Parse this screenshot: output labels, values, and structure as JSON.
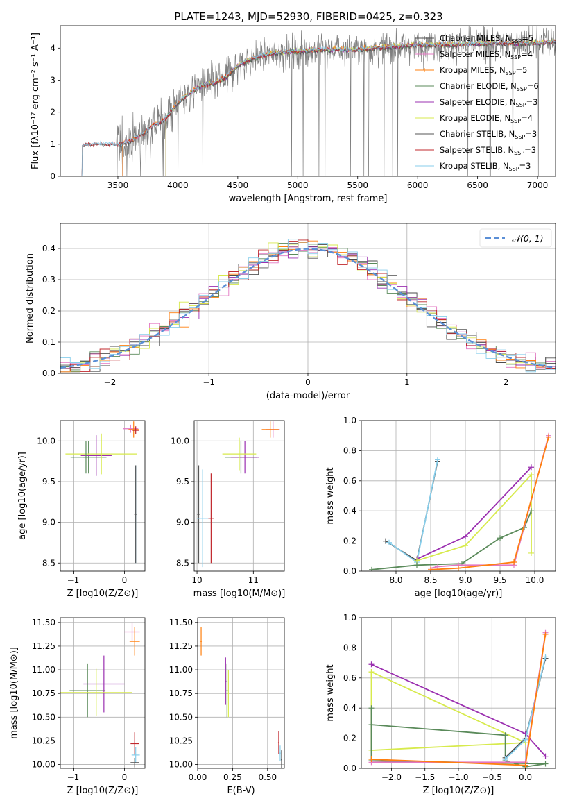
{
  "figure_title": "PLATE=1243, MJD=52930, FIBERID=0425, z=0.323",
  "colors": {
    "Chabrier MILES": "#4b4b4b",
    "Salpeter MILES": "#e377c2",
    "Kroupa MILES": "#ff7f0e",
    "Chabrier ELODIE": "#5a8a5a",
    "Salpeter ELODIE": "#9b30b0",
    "Kroupa ELODIE": "#d7ea4c",
    "Chabrier STELIB": "#555555",
    "Salpeter STELIB": "#c0282d",
    "Kroupa STELIB": "#87ceeb",
    "spectrum": "#808080",
    "normal": "#5b8fd6"
  },
  "chart_data": [
    {
      "id": "spectrum",
      "type": "line",
      "title": "PLATE=1243, MJD=52930, FIBERID=0425, z=0.323",
      "xlabel": "wavelength [Angstrom, rest frame]",
      "ylabel": "Flux [fλ10⁻¹⁷ erg cm⁻² s⁻¹ A⁻¹]",
      "xlim": [
        3020,
        7150
      ],
      "ylim": [
        0,
        4.7
      ],
      "xticks": [
        "3500",
        "4000",
        "4500",
        "5000",
        "5500",
        "6000",
        "6500",
        "7000"
      ],
      "yticks": [
        "0",
        "1",
        "2",
        "3",
        "4"
      ],
      "legend_position": "top-right",
      "legend": [
        "Chabrier MILES, N_SSP=5",
        "Salpeter MILES, N_SSP=4",
        "Kroupa MILES, N_SSP=5",
        "Chabrier ELODIE, N_SSP=6",
        "Salpeter ELODIE, N_SSP=3",
        "Kroupa ELODIE, N_SSP=4",
        "Chabrier STELIB, N_SSP=3",
        "Salpeter STELIB, N_SSP=3",
        "Kroupa STELIB, N_SSP=3"
      ],
      "continuum": {
        "x": [
          3200,
          3250,
          3500,
          3600,
          3700,
          3800,
          3900,
          4000,
          4100,
          4200,
          4300,
          4400,
          4500,
          4600,
          4800,
          5000,
          5200,
          5500,
          5800,
          6000,
          6300,
          6600,
          7000,
          7150
        ],
        "y": [
          0.95,
          1.0,
          1.0,
          1.1,
          1.3,
          1.6,
          1.8,
          2.3,
          2.6,
          2.85,
          2.9,
          3.1,
          3.45,
          3.65,
          3.85,
          3.9,
          3.95,
          3.95,
          4.05,
          4.1,
          4.1,
          4.15,
          4.15,
          4.2
        ]
      }
    },
    {
      "id": "residuals",
      "type": "line",
      "xlabel": "(data-model)/error",
      "ylabel": "Normed distribution",
      "xlim": [
        -2.5,
        2.5
      ],
      "ylim": [
        0,
        0.48
      ],
      "xticks": [
        "−2",
        "−1",
        "0",
        "1",
        "2"
      ],
      "yticks": [
        "0.0",
        "0.1",
        "0.2",
        "0.3",
        "0.4"
      ],
      "grid": true,
      "legend_position": "top-right",
      "legend": [
        "𝒩(0, 1)"
      ],
      "curve": "normal pdf, mean 0, sigma 1"
    },
    {
      "id": "age-Z",
      "type": "scatter",
      "xlabel": "Z [log10(Z/Z⊙)]",
      "ylabel": "age  [log10(age/yr)]",
      "xlim": [
        -1.25,
        0.4
      ],
      "ylim": [
        8.4,
        10.25
      ],
      "xticks": [
        "−1",
        "0"
      ],
      "yticks": [
        "8.5",
        "9.0",
        "9.5",
        "10.0"
      ],
      "grid": true,
      "points": [
        {
          "lib": "Chabrier ELODIE",
          "x": -0.7,
          "y": 9.8,
          "xerr": 0.35,
          "yerr": 0.2
        },
        {
          "lib": "Salpeter ELODIE",
          "x": -0.55,
          "y": 9.82,
          "xerr": 0.3,
          "yerr": 0.25
        },
        {
          "lib": "Kroupa ELODIE",
          "x": -0.45,
          "y": 9.84,
          "xerr": 0.7,
          "yerr": 0.25
        },
        {
          "lib": "Chabrier ELODIE",
          "x": -0.75,
          "y": 9.8,
          "xerr": 0.05,
          "yerr": 0.2
        },
        {
          "lib": "Salpeter MILES",
          "x": 0.12,
          "y": 10.15,
          "xerr": 0.15,
          "yerr": 0.05
        },
        {
          "lib": "Kroupa MILES",
          "x": 0.18,
          "y": 10.14,
          "xerr": 0.1,
          "yerr": 0.1
        },
        {
          "lib": "Salpeter STELIB",
          "x": 0.22,
          "y": 10.13,
          "xerr": 0.06,
          "yerr": 0.05
        },
        {
          "lib": "Kroupa STELIB",
          "x": 0.22,
          "y": 9.1,
          "xerr": 0.02,
          "yerr": 0.6
        },
        {
          "lib": "Chabrier STELIB",
          "x": 0.22,
          "y": 9.1,
          "xerr": 0.03,
          "yerr": 0.6
        }
      ]
    },
    {
      "id": "age-mass",
      "type": "scatter",
      "xlabel": "mass [log10(M/M⊙)]",
      "ylabel": "",
      "xlim": [
        9.95,
        11.55
      ],
      "ylim": [
        8.4,
        10.25
      ],
      "xticks": [
        "10",
        "11"
      ],
      "yticks": [
        "8.5",
        "9.0",
        "9.5",
        "10.0"
      ],
      "grid": true,
      "points": [
        {
          "lib": "Chabrier ELODIE",
          "x": 10.78,
          "y": 9.8,
          "xerr": 0.28,
          "yerr": 0.2
        },
        {
          "lib": "Salpeter ELODIE",
          "x": 10.85,
          "y": 9.8,
          "xerr": 0.25,
          "yerr": 0.2
        },
        {
          "lib": "Kroupa ELODIE",
          "x": 10.75,
          "y": 9.84,
          "xerr": 0.3,
          "yerr": 0.2
        },
        {
          "lib": "Salpeter MILES",
          "x": 11.35,
          "y": 10.14,
          "xerr": 0.12,
          "yerr": 0.1
        },
        {
          "lib": "Kroupa MILES",
          "x": 11.3,
          "y": 10.14,
          "xerr": 0.15,
          "yerr": 0.1
        },
        {
          "lib": "Salpeter STELIB",
          "x": 10.25,
          "y": 9.05,
          "xerr": 0.05,
          "yerr": 0.55
        },
        {
          "lib": "Chabrier STELIB",
          "x": 10.03,
          "y": 9.1,
          "xerr": 0.03,
          "yerr": 0.6
        },
        {
          "lib": "Kroupa STELIB",
          "x": 10.1,
          "y": 9.05,
          "xerr": 0.1,
          "yerr": 0.6
        }
      ]
    },
    {
      "id": "weight-age",
      "type": "line",
      "xlabel": "age  [log10(age/yr)]",
      "ylabel": "mass weight",
      "xlim": [
        7.5,
        10.3
      ],
      "ylim": [
        0,
        1.0
      ],
      "xticks": [
        "8.0",
        "8.5",
        "9.0",
        "9.5",
        "10.0"
      ],
      "yticks": [
        "0.0",
        "0.2",
        "0.4",
        "0.6",
        "0.8",
        "1.0"
      ],
      "grid": true,
      "series": [
        {
          "lib": "Chabrier MILES",
          "x": [
            7.85,
            8.3,
            8.6
          ],
          "y": [
            0.2,
            0.07,
            0.73
          ]
        },
        {
          "lib": "Kroupa STELIB",
          "x": [
            7.9,
            8.3,
            8.6
          ],
          "y": [
            0.19,
            0.06,
            0.74
          ]
        },
        {
          "lib": "Salpeter ELODIE",
          "x": [
            8.3,
            9.0,
            9.95
          ],
          "y": [
            0.08,
            0.23,
            0.69
          ]
        },
        {
          "lib": "Kroupa ELODIE",
          "x": [
            8.3,
            9.0,
            9.95,
            9.95
          ],
          "y": [
            0.07,
            0.17,
            0.64,
            0.12
          ]
        },
        {
          "lib": "Chabrier ELODIE",
          "x": [
            7.65,
            8.3,
            8.95,
            9.5,
            9.85,
            9.95
          ],
          "y": [
            0.01,
            0.04,
            0.05,
            0.22,
            0.29,
            0.4
          ]
        },
        {
          "lib": "Salpeter MILES",
          "x": [
            8.5,
            8.6,
            8.9,
            9.7,
            10.2
          ],
          "y": [
            0.02,
            0.03,
            0.04,
            0.04,
            0.9
          ]
        },
        {
          "lib": "Kroupa MILES",
          "x": [
            8.5,
            8.9,
            9.7,
            10.2
          ],
          "y": [
            0.01,
            0.02,
            0.06,
            0.89
          ]
        }
      ]
    },
    {
      "id": "mass-Z",
      "type": "scatter",
      "xlabel": "Z [log10(Z/Z⊙)]",
      "ylabel": "mass [log10(M/M⊙)]",
      "xlim": [
        -1.25,
        0.4
      ],
      "ylim": [
        9.96,
        11.55
      ],
      "xticks": [
        "−1",
        "0"
      ],
      "yticks": [
        "10.00",
        "10.25",
        "10.50",
        "10.75",
        "11.00",
        "11.25",
        "11.50"
      ],
      "grid": true,
      "points": [
        {
          "lib": "Chabrier ELODIE",
          "x": -0.72,
          "y": 10.78,
          "xerr": 0.35,
          "yerr": 0.28
        },
        {
          "lib": "Salpeter ELODIE",
          "x": -0.4,
          "y": 10.85,
          "xerr": 0.4,
          "yerr": 0.3
        },
        {
          "lib": "Kroupa ELODIE",
          "x": -0.55,
          "y": 10.76,
          "xerr": 0.7,
          "yerr": 0.25
        },
        {
          "lib": "Salpeter MILES",
          "x": 0.15,
          "y": 11.4,
          "xerr": 0.15,
          "yerr": 0.1
        },
        {
          "lib": "Kroupa MILES",
          "x": 0.2,
          "y": 11.3,
          "xerr": 0.1,
          "yerr": 0.15
        },
        {
          "lib": "Salpeter STELIB",
          "x": 0.2,
          "y": 10.22,
          "xerr": 0.08,
          "yerr": 0.12
        },
        {
          "lib": "Kroupa STELIB",
          "x": 0.22,
          "y": 10.1,
          "xerr": 0.08,
          "yerr": 0.08
        },
        {
          "lib": "Chabrier STELIB",
          "x": 0.2,
          "y": 10.02,
          "xerr": 0.08,
          "yerr": 0.05
        }
      ]
    },
    {
      "id": "mass-EBV",
      "type": "scatter",
      "xlabel": "E(B-V)",
      "ylabel": "",
      "xlim": [
        0,
        0.62
      ],
      "ylim": [
        9.96,
        11.55
      ],
      "xticks": [
        "0.00",
        "0.25",
        "0.50"
      ],
      "yticks": [
        "10.00",
        "10.25",
        "10.50",
        "10.75",
        "11.00",
        "11.25",
        "11.50"
      ],
      "grid": true,
      "points": [
        {
          "lib": "Kroupa MILES",
          "x": 0.025,
          "y": 11.3,
          "xerr": 0.005,
          "yerr": 0.15
        },
        {
          "lib": "Salpeter ELODIE",
          "x": 0.2,
          "y": 10.88,
          "xerr": 0.005,
          "yerr": 0.25
        },
        {
          "lib": "Chabrier ELODIE",
          "x": 0.21,
          "y": 10.78,
          "xerr": 0.005,
          "yerr": 0.28
        },
        {
          "lib": "Kroupa ELODIE",
          "x": 0.22,
          "y": 10.75,
          "xerr": 0.005,
          "yerr": 0.25
        },
        {
          "lib": "Salpeter STELIB",
          "x": 0.58,
          "y": 10.23,
          "xerr": 0.005,
          "yerr": 0.12
        },
        {
          "lib": "Kroupa STELIB",
          "x": 0.59,
          "y": 10.12,
          "xerr": 0.005,
          "yerr": 0.08
        },
        {
          "lib": "Chabrier STELIB",
          "x": 0.6,
          "y": 10.05,
          "xerr": 0.005,
          "yerr": 0.1
        }
      ]
    },
    {
      "id": "weight-Z",
      "type": "line",
      "xlabel": "Z [log10(Z/Z⊙)]",
      "ylabel": "mass weight",
      "xlim": [
        -2.45,
        0.45
      ],
      "ylim": [
        0,
        1.0
      ],
      "xticks": [
        "−2.0",
        "−1.5",
        "−1.0",
        "−0.5",
        "0.0"
      ],
      "yticks": [
        "0.0",
        "0.2",
        "0.4",
        "0.6",
        "0.8",
        "1.0"
      ],
      "grid": true,
      "series": [
        {
          "lib": "Salpeter ELODIE",
          "x": [
            -2.3,
            0.0,
            0.3
          ],
          "y": [
            0.69,
            0.23,
            0.08
          ]
        },
        {
          "lib": "Kroupa ELODIE",
          "x": [
            -2.3,
            0.0,
            -2.3,
            -2.3
          ],
          "y": [
            0.64,
            0.17,
            0.12,
            0.64
          ]
        },
        {
          "lib": "Chabrier ELODIE",
          "x": [
            -2.3,
            -0.3,
            -0.3,
            0.0,
            0.3,
            -2.3,
            -2.3
          ],
          "y": [
            0.29,
            0.22,
            0.05,
            0.01,
            0.03,
            0.05,
            0.4
          ]
        },
        {
          "lib": "Chabrier MILES",
          "x": [
            -0.3,
            0.0,
            0.3
          ],
          "y": [
            0.07,
            0.2,
            0.73
          ]
        },
        {
          "lib": "Kroupa STELIB",
          "x": [
            -0.3,
            0.0,
            0.3
          ],
          "y": [
            0.06,
            0.19,
            0.74
          ]
        },
        {
          "lib": "Salpeter MILES",
          "x": [
            -2.3,
            0.0,
            0.3
          ],
          "y": [
            0.04,
            0.04,
            0.9
          ]
        },
        {
          "lib": "Kroupa MILES",
          "x": [
            -2.3,
            0.0,
            0.3
          ],
          "y": [
            0.06,
            0.02,
            0.89
          ]
        }
      ]
    }
  ]
}
